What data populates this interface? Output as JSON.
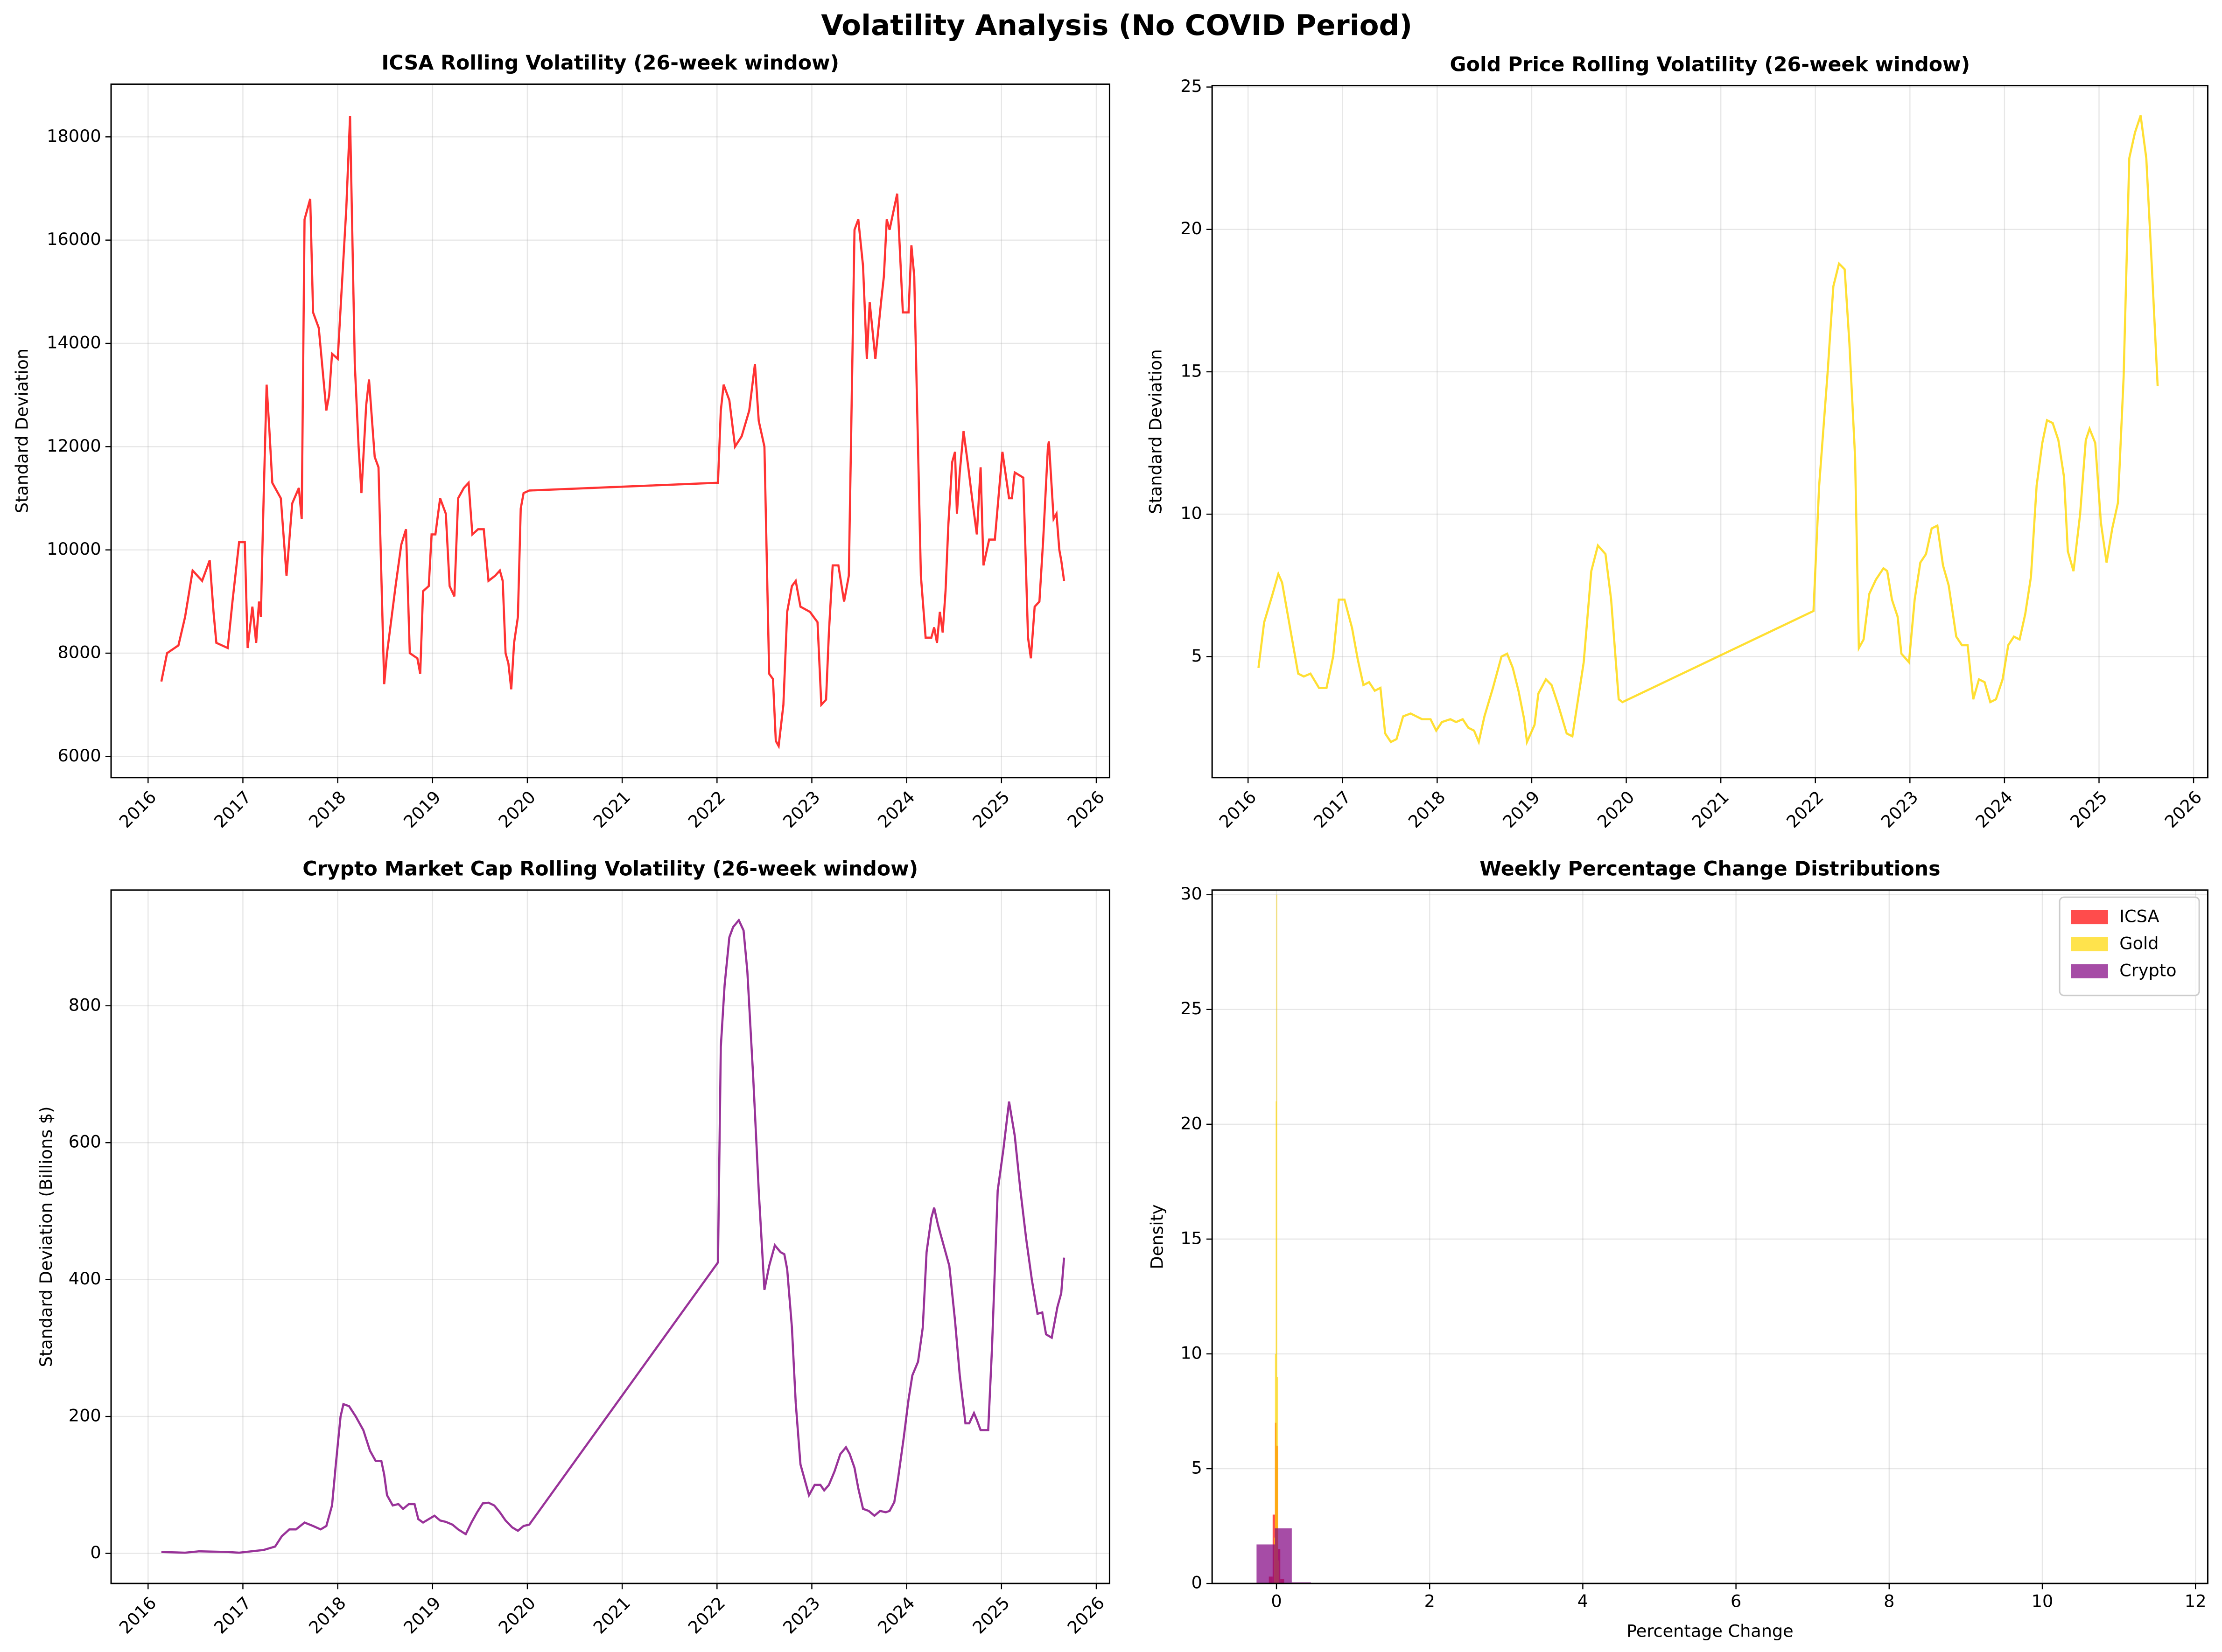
{
  "title": "Volatility Analysis (No COVID Period)",
  "chart_data": [
    {
      "type": "line",
      "title": "ICSA Rolling Volatility (26-week window)",
      "ylabel": "Standard Deviation",
      "color": "red",
      "grid": true,
      "xtick_rotation": 45,
      "xlim": [
        2015.61,
        2026.14
      ],
      "xticks": [
        2016,
        2017,
        2018,
        2019,
        2020,
        2021,
        2022,
        2023,
        2024,
        2025,
        2026
      ],
      "ylim": [
        5590,
        19020
      ],
      "yticks": [
        6000,
        8000,
        10000,
        12000,
        14000,
        16000,
        18000
      ],
      "x": [
        2016.14,
        2016.2,
        2016.32,
        2016.39,
        2016.47,
        2016.57,
        2016.65,
        2016.69,
        2016.72,
        2016.84,
        2016.89,
        2016.96,
        2017.02,
        2017.05,
        2017.1,
        2017.14,
        2017.17,
        2017.19,
        2017.2,
        2017.22,
        2017.25,
        2017.28,
        2017.31,
        2017.4,
        2017.46,
        2017.52,
        2017.59,
        2017.62,
        2017.65,
        2017.71,
        2017.74,
        2017.8,
        2017.88,
        2017.91,
        2017.94,
        2018,
        2018.04,
        2018.09,
        2018.13,
        2018.18,
        2018.22,
        2018.25,
        2018.3,
        2018.33,
        2018.39,
        2018.43,
        2018.46,
        2018.49,
        2018.52,
        2018.61,
        2018.67,
        2018.72,
        2018.76,
        2018.84,
        2018.87,
        2018.9,
        2018.96,
        2018.99,
        2019.03,
        2019.08,
        2019.14,
        2019.18,
        2019.23,
        2019.27,
        2019.33,
        2019.38,
        2019.42,
        2019.48,
        2019.54,
        2019.59,
        2019.66,
        2019.71,
        2019.74,
        2019.77,
        2019.8,
        2019.83,
        2019.86,
        2019.9,
        2019.93,
        2019.96,
        2020.02,
        2022.01,
        2022.04,
        2022.07,
        2022.13,
        2022.19,
        2022.26,
        2022.34,
        2022.4,
        2022.44,
        2022.5,
        2022.55,
        2022.59,
        2022.62,
        2022.65,
        2022.7,
        2022.74,
        2022.79,
        2022.83,
        2022.88,
        2022.98,
        2023.06,
        2023.1,
        2023.15,
        2023.18,
        2023.22,
        2023.28,
        2023.34,
        2023.39,
        2023.45,
        2023.49,
        2023.54,
        2023.58,
        2023.61,
        2023.67,
        2023.73,
        2023.76,
        2023.79,
        2023.82,
        2023.9,
        2023.96,
        2024.02,
        2024.05,
        2024.08,
        2024.11,
        2024.15,
        2024.2,
        2024.26,
        2024.29,
        2024.32,
        2024.35,
        2024.38,
        2024.41,
        2024.44,
        2024.48,
        2024.51,
        2024.53,
        2024.56,
        2024.6,
        2024.65,
        2024.69,
        2024.74,
        2024.78,
        2024.81,
        2024.87,
        2024.93,
        2025.01,
        2025.08,
        2025.11,
        2025.14,
        2025.23,
        2025.28,
        2025.31,
        2025.35,
        2025.4,
        2025.44,
        2025.49,
        2025.5,
        2025.55,
        2025.58,
        2025.61,
        2025.63,
        2025.66
      ],
      "values": [
        7450,
        8000,
        8150,
        8700,
        9600,
        9400,
        9800,
        8800,
        8200,
        8100,
        9000,
        10150,
        10150,
        8100,
        8900,
        8200,
        9000,
        8700,
        9600,
        11100,
        13200,
        12300,
        11300,
        11000,
        9500,
        10900,
        11200,
        10600,
        16400,
        16800,
        14600,
        14300,
        12700,
        13000,
        13800,
        13700,
        15000,
        16600,
        18400,
        13600,
        12000,
        11100,
        12800,
        13300,
        11800,
        11600,
        9500,
        7400,
        8000,
        9300,
        10100,
        10400,
        8000,
        7900,
        7600,
        9200,
        9300,
        10300,
        10300,
        11000,
        10700,
        9300,
        9100,
        11000,
        11200,
        11300,
        10300,
        10400,
        10400,
        9400,
        9500,
        9600,
        9400,
        8000,
        7800,
        7300,
        8200,
        8700,
        10800,
        11100,
        11150,
        11300,
        12700,
        13200,
        12900,
        12000,
        12200,
        12700,
        13600,
        12500,
        12000,
        7600,
        7500,
        6300,
        6200,
        7000,
        8800,
        9300,
        9400,
        8900,
        8800,
        8600,
        7000,
        7100,
        8400,
        9700,
        9700,
        9000,
        9500,
        16200,
        16400,
        15500,
        13700,
        14800,
        13700,
        14800,
        15300,
        16400,
        16200,
        16900,
        14600,
        14600,
        15900,
        15300,
        12800,
        9500,
        8300,
        8300,
        8500,
        8200,
        8800,
        8400,
        9200,
        10500,
        11700,
        11900,
        10700,
        11500,
        12300,
        11600,
        11000,
        10300,
        11600,
        9700,
        10200,
        10200,
        11900,
        11000,
        11000,
        11500,
        11400,
        8300,
        7900,
        8900,
        9000,
        10200,
        12000,
        12100,
        10600,
        10700,
        10000,
        9800,
        9400
      ]
    },
    {
      "type": "line",
      "title": "Gold Price Rolling Volatility (26-week window)",
      "ylabel": "Standard Deviation",
      "color": "gold",
      "grid": true,
      "xtick_rotation": 45,
      "xlim": [
        2015.62,
        2026.15
      ],
      "xticks": [
        2016,
        2017,
        2018,
        2019,
        2020,
        2021,
        2022,
        2023,
        2024,
        2025,
        2026
      ],
      "ylim": [
        0.75,
        25.05
      ],
      "yticks": [
        5,
        10,
        15,
        20,
        25
      ],
      "x": [
        2016.11,
        2016.17,
        2016.26,
        2016.32,
        2016.36,
        2016.45,
        2016.53,
        2016.59,
        2016.66,
        2016.75,
        2016.83,
        2016.9,
        2016.96,
        2017.02,
        2017.1,
        2017.16,
        2017.22,
        2017.28,
        2017.34,
        2017.4,
        2017.45,
        2017.51,
        2017.57,
        2017.64,
        2017.72,
        2017.78,
        2017.84,
        2017.93,
        2017.99,
        2018.05,
        2018.14,
        2018.2,
        2018.27,
        2018.33,
        2018.39,
        2018.44,
        2018.5,
        2018.59,
        2018.68,
        2018.74,
        2018.8,
        2018.86,
        2018.92,
        2018.95,
        2019.03,
        2019.07,
        2019.15,
        2019.21,
        2019.28,
        2019.37,
        2019.43,
        2019.49,
        2019.55,
        2019.63,
        2019.7,
        2019.78,
        2019.84,
        2019.92,
        2019.96,
        2021.98,
        2022.04,
        2022.13,
        2022.19,
        2022.25,
        2022.31,
        2022.36,
        2022.42,
        2022.46,
        2022.51,
        2022.57,
        2022.64,
        2022.72,
        2022.76,
        2022.81,
        2022.87,
        2022.91,
        2022.99,
        2023.05,
        2023.11,
        2023.17,
        2023.23,
        2023.29,
        2023.35,
        2023.41,
        2023.49,
        2023.55,
        2023.61,
        2023.67,
        2023.73,
        2023.79,
        2023.85,
        2023.91,
        2023.98,
        2024.04,
        2024.1,
        2024.16,
        2024.22,
        2024.28,
        2024.34,
        2024.4,
        2024.45,
        2024.51,
        2024.57,
        2024.63,
        2024.67,
        2024.73,
        2024.8,
        2024.86,
        2024.9,
        2024.96,
        2025.02,
        2025.08,
        2025.14,
        2025.2,
        2025.26,
        2025.32,
        2025.38,
        2025.44,
        2025.5,
        2025.56,
        2025.62
      ],
      "values": [
        4.6,
        6.2,
        7.2,
        7.9,
        7.6,
        5.9,
        4.4,
        4.3,
        4.4,
        3.9,
        3.9,
        5,
        7,
        7,
        6,
        4.9,
        4,
        4.1,
        3.8,
        3.9,
        2.3,
        2,
        2.1,
        2.9,
        3,
        2.9,
        2.8,
        2.8,
        2.4,
        2.7,
        2.8,
        2.7,
        2.8,
        2.5,
        2.4,
        2,
        2.9,
        3.9,
        5,
        5.1,
        4.6,
        3.8,
        2.8,
        2,
        2.6,
        3.7,
        4.2,
        4,
        3.3,
        2.3,
        2.2,
        3.5,
        4.8,
        8,
        8.9,
        8.6,
        7,
        3.5,
        3.4,
        6.6,
        11,
        15,
        18,
        18.8,
        18.6,
        16,
        12,
        5.3,
        5.6,
        7.2,
        7.7,
        8.1,
        8,
        7,
        6.4,
        5.1,
        4.8,
        7,
        8.3,
        8.6,
        9.5,
        9.6,
        8.2,
        7.5,
        5.7,
        5.4,
        5.4,
        3.5,
        4.2,
        4.1,
        3.4,
        3.5,
        4.2,
        5.4,
        5.7,
        5.6,
        6.5,
        7.8,
        11,
        12.5,
        13.3,
        13.2,
        12.6,
        11.3,
        8.7,
        8,
        10,
        12.6,
        13,
        12.5,
        9.7,
        8.3,
        9.5,
        10.4,
        14.8,
        22.5,
        23.4,
        24,
        22.5,
        18.6,
        14.5
      ]
    },
    {
      "type": "line",
      "title": "Crypto Market Cap Rolling Volatility (26-week window)",
      "ylabel": "Standard Deviation (Billions $)",
      "color": "purple",
      "grid": true,
      "xtick_rotation": 45,
      "xlim": [
        2015.61,
        2026.14
      ],
      "xticks": [
        2016,
        2017,
        2018,
        2019,
        2020,
        2021,
        2022,
        2023,
        2024,
        2025,
        2026
      ],
      "ylim": [
        -44,
        969
      ],
      "yticks": [
        0,
        200,
        400,
        600,
        800
      ],
      "x": [
        2016.14,
        2016.39,
        2016.54,
        2016.84,
        2016.96,
        2017.22,
        2017.34,
        2017.41,
        2017.49,
        2017.56,
        2017.65,
        2017.74,
        2017.82,
        2017.88,
        2017.94,
        2017.98,
        2018.03,
        2018.06,
        2018.12,
        2018.19,
        2018.27,
        2018.34,
        2018.4,
        2018.46,
        2018.49,
        2018.52,
        2018.58,
        2018.64,
        2018.69,
        2018.75,
        2018.81,
        2018.85,
        2018.9,
        2018.96,
        2019.02,
        2019.08,
        2019.14,
        2019.21,
        2019.27,
        2019.35,
        2019.41,
        2019.47,
        2019.53,
        2019.59,
        2019.65,
        2019.71,
        2019.77,
        2019.84,
        2019.9,
        2019.96,
        2020.02,
        2022.01,
        2022.04,
        2022.08,
        2022.13,
        2022.17,
        2022.23,
        2022.28,
        2022.32,
        2022.38,
        2022.44,
        2022.5,
        2022.55,
        2022.61,
        2022.67,
        2022.71,
        2022.74,
        2022.79,
        2022.83,
        2022.88,
        2022.94,
        2022.97,
        2023.03,
        2023.09,
        2023.13,
        2023.18,
        2023.24,
        2023.3,
        2023.36,
        2023.4,
        2023.45,
        2023.49,
        2023.54,
        2023.6,
        2023.66,
        2023.72,
        2023.78,
        2023.82,
        2023.87,
        2023.91,
        2023.97,
        2024.02,
        2024.06,
        2024.12,
        2024.17,
        2024.21,
        2024.26,
        2024.29,
        2024.33,
        2024.39,
        2024.45,
        2024.51,
        2024.56,
        2024.62,
        2024.66,
        2024.71,
        2024.74,
        2024.78,
        2024.86,
        2024.9,
        2024.96,
        2025.02,
        2025.08,
        2025.14,
        2025.2,
        2025.26,
        2025.32,
        2025.38,
        2025.43,
        2025.47,
        2025.53,
        2025.59,
        2025.63,
        2025.66
      ],
      "values": [
        2,
        1,
        3,
        2,
        1,
        5,
        10,
        25,
        35,
        35,
        45,
        40,
        35,
        40,
        70,
        130,
        200,
        218,
        215,
        200,
        180,
        150,
        135,
        135,
        115,
        85,
        70,
        72,
        65,
        72,
        72,
        50,
        45,
        50,
        55,
        48,
        46,
        42,
        35,
        28,
        45,
        60,
        73,
        74,
        70,
        60,
        48,
        38,
        33,
        40,
        42,
        425,
        740,
        830,
        900,
        915,
        925,
        910,
        850,
        700,
        530,
        385,
        420,
        450,
        440,
        437,
        415,
        330,
        220,
        130,
        100,
        85,
        100,
        100,
        92,
        100,
        120,
        145,
        155,
        145,
        125,
        95,
        65,
        62,
        55,
        62,
        60,
        62,
        75,
        110,
        170,
        225,
        260,
        280,
        330,
        440,
        490,
        505,
        480,
        450,
        420,
        340,
        260,
        190,
        190,
        205,
        195,
        180,
        180,
        300,
        530,
        590,
        660,
        610,
        530,
        460,
        400,
        350,
        352,
        320,
        315,
        360,
        380,
        432
      ]
    },
    {
      "type": "histogram",
      "title": "Weekly Percentage Change Distributions",
      "xlabel": "Percentage Change",
      "ylabel": "Density",
      "grid": true,
      "legend": "upper right",
      "xlim": [
        -0.84,
        12.16
      ],
      "xticks": [
        0,
        2,
        4,
        6,
        8,
        10,
        12
      ],
      "ylim": [
        0,
        30.2
      ],
      "yticks": [
        0,
        5,
        10,
        15,
        20,
        25,
        30
      ],
      "series": [
        {
          "name": "ICSA",
          "color": "red",
          "bins": [
            -0.1,
            -0.05,
            -0.02,
            0,
            0.02,
            0.05,
            0.1
          ],
          "values": [
            0.3,
            3,
            7,
            6,
            1.5,
            0.2
          ]
        },
        {
          "name": "Gold",
          "color": "gold",
          "bins": [
            -0.03,
            -0.02,
            -0.01,
            0,
            0.01,
            0.02,
            0.03
          ],
          "values": [
            2,
            10,
            21,
            30,
            9,
            1
          ]
        },
        {
          "name": "Crypto",
          "color": "purple",
          "bins": [
            -0.26,
            -0.02,
            0.2,
            0.45
          ],
          "values": [
            1.7,
            2.4,
            0.05
          ]
        }
      ]
    }
  ]
}
